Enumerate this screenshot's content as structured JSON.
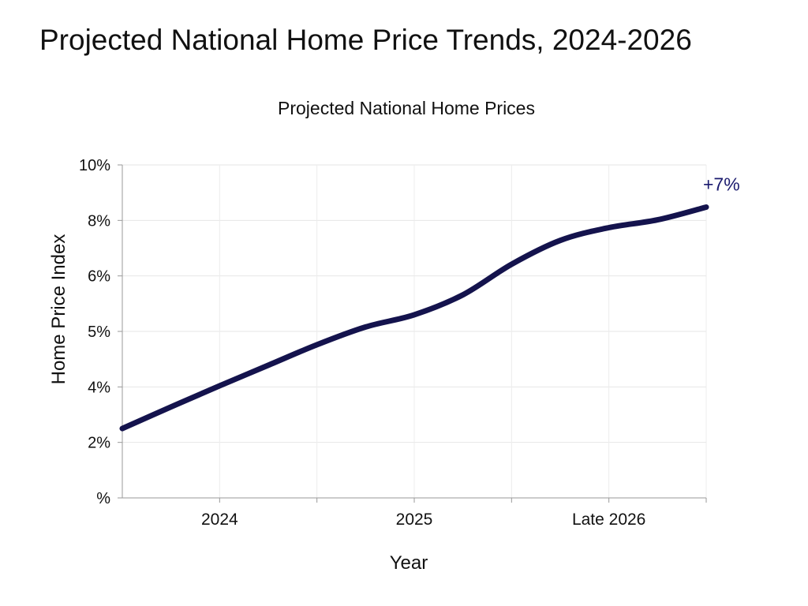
{
  "page": {
    "title": "Projected National Home Price Trends, 2024-2026"
  },
  "chart_data": {
    "type": "line",
    "title": "Projected National Home Prices",
    "xlabel": "Year",
    "ylabel": "Home Price Index",
    "y_tick_labels": [
      "%",
      "2%",
      "4%",
      "5%",
      "6%",
      "8%",
      "10%"
    ],
    "x_tick_labels": [
      "2024",
      "2025",
      "Late 2026"
    ],
    "x_tick_positions": [
      0.5,
      1.5,
      2.5
    ],
    "xlim": [
      0,
      3
    ],
    "ylim": [
      0,
      6
    ],
    "grid": true,
    "series": [
      {
        "color": "#14134d",
        "x": [
          0,
          0.25,
          0.5,
          0.75,
          1.0,
          1.25,
          1.5,
          1.75,
          2.0,
          2.25,
          2.5,
          2.75,
          3.0
        ],
        "y": [
          1.25,
          1.64,
          2.02,
          2.39,
          2.76,
          3.08,
          3.3,
          3.66,
          4.21,
          4.64,
          4.87,
          5.01,
          5.24
        ]
      }
    ],
    "annotations": [
      {
        "text": "+7%",
        "x": 3.0,
        "y": 5.24,
        "color": "#1a1a6e"
      }
    ]
  }
}
